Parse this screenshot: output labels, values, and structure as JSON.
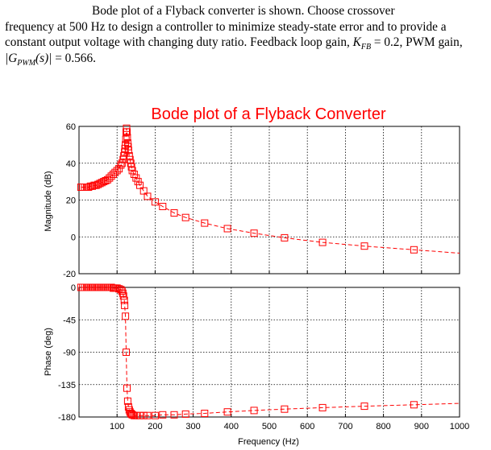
{
  "problem": {
    "line1": "Bode plot of a Flyback converter is shown. Choose crossover",
    "line2": "frequency at 500 Hz to design a controller to minimize steady-state error and to provide a",
    "line3_text": "constant output voltage with changing duty ratio. Feedback loop gain,",
    "kfb_symbol": "K",
    "kfb_sub": "FB",
    "kfb_value": " = 0.2, PWM gain,",
    "gpwm_expr": "|G",
    "gpwm_sub": "PWM",
    "gpwm_arg": "(s)|",
    "gpwm_value": " = 0.566."
  },
  "chart_data": {
    "type": "line",
    "title": "Bode plot of a Flyback Converter",
    "xlabel": "Frequency (Hz)",
    "xlim": [
      0,
      1000
    ],
    "xticks": [
      100,
      200,
      300,
      400,
      500,
      600,
      700,
      800,
      900,
      1000
    ],
    "grid": true,
    "series_color": "#ff0000",
    "marker": "open-square",
    "line_style": "dashed",
    "magnitude": {
      "ylabel": "Magnitude (dB)",
      "ylim": [
        -20,
        60
      ],
      "yticks": [
        60,
        40,
        20,
        0,
        -20
      ],
      "x": [
        5,
        10,
        15,
        20,
        25,
        30,
        35,
        40,
        45,
        50,
        55,
        60,
        65,
        70,
        75,
        80,
        85,
        90,
        95,
        100,
        105,
        110,
        113,
        116,
        118,
        120,
        121,
        122,
        123,
        124,
        125,
        126,
        127,
        128,
        129,
        130,
        132,
        134,
        136,
        138,
        140,
        145,
        150,
        155,
        160,
        170,
        180,
        200,
        220,
        250,
        280,
        330,
        390,
        460,
        540,
        640,
        750,
        880
      ],
      "y": [
        27,
        27,
        27,
        27,
        27,
        27.5,
        27.5,
        28,
        28,
        28.5,
        29,
        29.5,
        30,
        30.5,
        31,
        32,
        33,
        34,
        35,
        36,
        37,
        39,
        40,
        42,
        44,
        46,
        48,
        50,
        53,
        57,
        59,
        57,
        54,
        51,
        49,
        47,
        44,
        42,
        40,
        38,
        36,
        34,
        32,
        30,
        28,
        25,
        22,
        19,
        16.5,
        13,
        10.5,
        7.5,
        4.5,
        2,
        -0.5,
        -3,
        -5,
        -7
      ]
    },
    "phase": {
      "ylabel": "Phase (deg)",
      "ylim": [
        -180,
        0
      ],
      "yticks": [
        0,
        -45,
        -90,
        -135,
        -180
      ],
      "x": [
        5,
        10,
        15,
        20,
        25,
        30,
        35,
        40,
        45,
        50,
        55,
        60,
        65,
        70,
        75,
        80,
        85,
        90,
        95,
        100,
        105,
        110,
        113,
        115,
        117,
        119,
        120,
        122,
        124,
        126,
        128,
        130,
        132,
        134,
        136,
        138,
        140,
        145,
        150,
        160,
        170,
        180,
        200,
        220,
        250,
        280,
        330,
        390,
        460,
        540,
        640,
        750,
        880
      ],
      "y": [
        0,
        0,
        0,
        0,
        0,
        0,
        0,
        0,
        0,
        0,
        0,
        0,
        0,
        0,
        0,
        0,
        0,
        -1,
        -1,
        -1,
        -2,
        -3,
        -5,
        -8,
        -12,
        -18,
        -25,
        -40,
        -90,
        -140,
        -158,
        -166,
        -170,
        -173,
        -175,
        -176,
        -177,
        -178,
        -178,
        -178,
        -178,
        -178,
        -178,
        -177,
        -177,
        -176,
        -175,
        -173,
        -171,
        -169,
        -167,
        -165,
        -163
      ]
    }
  }
}
